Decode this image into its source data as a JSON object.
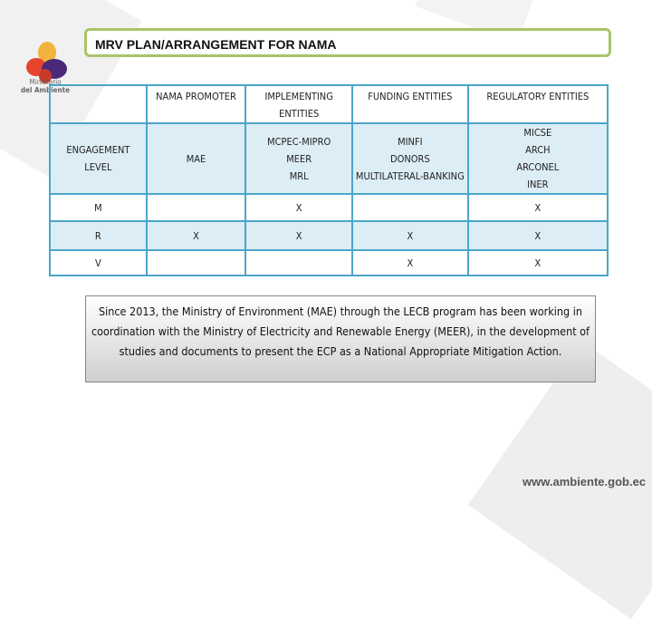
{
  "logo": {
    "line1": "Ministerio",
    "line2": "del Ambiente"
  },
  "title": "MRV PLAN/ARRANGEMENT FOR NAMA",
  "table": {
    "headers": [
      "",
      "NAMA PROMOTER",
      "IMPLEMENTING ENTITIES",
      "FUNDING ENTITIES",
      "REGULATORY ENTITIES"
    ],
    "engagement": {
      "label": "ENGAGEMENT LEVEL",
      "promoter": "MAE",
      "implementing": [
        "MCPEC-MIPRO",
        "MEER",
        "MRL"
      ],
      "funding": [
        "MINFI",
        "DONORS",
        "MULTILATERAL-BANKING"
      ],
      "regulatory": [
        "MICSE",
        "ARCH",
        "ARCONEL",
        "INER"
      ]
    },
    "rows": [
      {
        "level": "M",
        "cells": [
          "",
          "X",
          "",
          "X"
        ]
      },
      {
        "level": "R",
        "cells": [
          "X",
          "X",
          "X",
          "X"
        ]
      },
      {
        "level": "V",
        "cells": [
          "",
          "",
          "X",
          "X"
        ]
      }
    ]
  },
  "note": "Since 2013, the Ministry of Environment (MAE) through the LECB program has been working in coordination with the Ministry of Electricity and Renewable Energy (MEER), in the development of studies and documents to present the ECP as a National Appropriate Mitigation Action.",
  "footer_url": "www.ambiente.gob.ec"
}
